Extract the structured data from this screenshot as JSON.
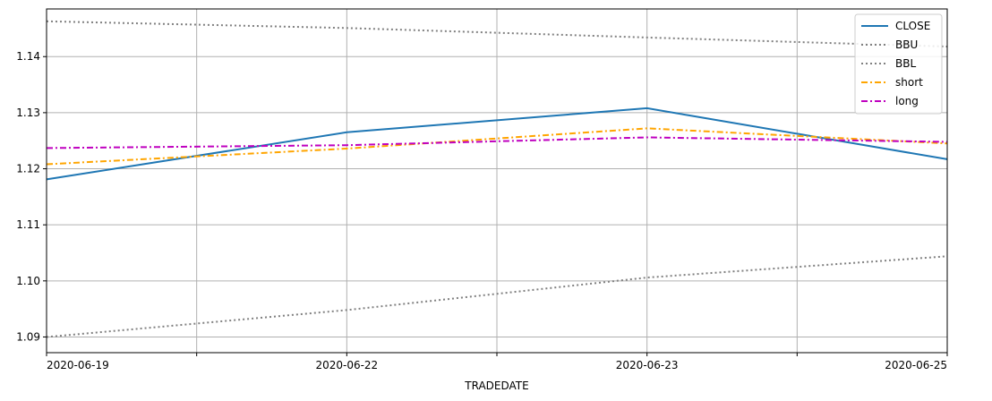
{
  "chart_data": {
    "type": "line",
    "title": "",
    "xlabel": "TRADEDATE",
    "ylabel": "",
    "x": [
      "2020-06-19",
      "2020-06-22",
      "2020-06-23",
      "2020-06-25"
    ],
    "x_ticks": [
      "2020-06-19",
      "",
      "2020-06-22",
      "",
      "2020-06-23",
      "",
      "2020-06-25"
    ],
    "y_ticks": [
      "1.09",
      "1.10",
      "1.11",
      "1.12",
      "1.13",
      "1.14"
    ],
    "ylim": [
      1.0872,
      1.1485
    ],
    "grid": true,
    "legend_position": "top-right",
    "series": [
      {
        "name": "CLOSE",
        "values": [
          1.1181,
          1.1265,
          1.1308,
          1.1217
        ],
        "color": "#1f77b4",
        "style": "solid"
      },
      {
        "name": "BBU",
        "values": [
          1.1463,
          1.1451,
          1.1434,
          1.1418
        ],
        "color": "#808080",
        "style": "dotted"
      },
      {
        "name": "BBL",
        "values": [
          1.09,
          1.0948,
          1.1006,
          1.1044
        ],
        "color": "#808080",
        "style": "dotted"
      },
      {
        "name": "short",
        "values": [
          1.1208,
          1.1236,
          1.1272,
          1.1245
        ],
        "color": "#ffa500",
        "style": "dashdot"
      },
      {
        "name": "long",
        "values": [
          1.1237,
          1.1242,
          1.1256,
          1.1248
        ],
        "color": "#bf00bf",
        "style": "dashdot"
      }
    ]
  }
}
